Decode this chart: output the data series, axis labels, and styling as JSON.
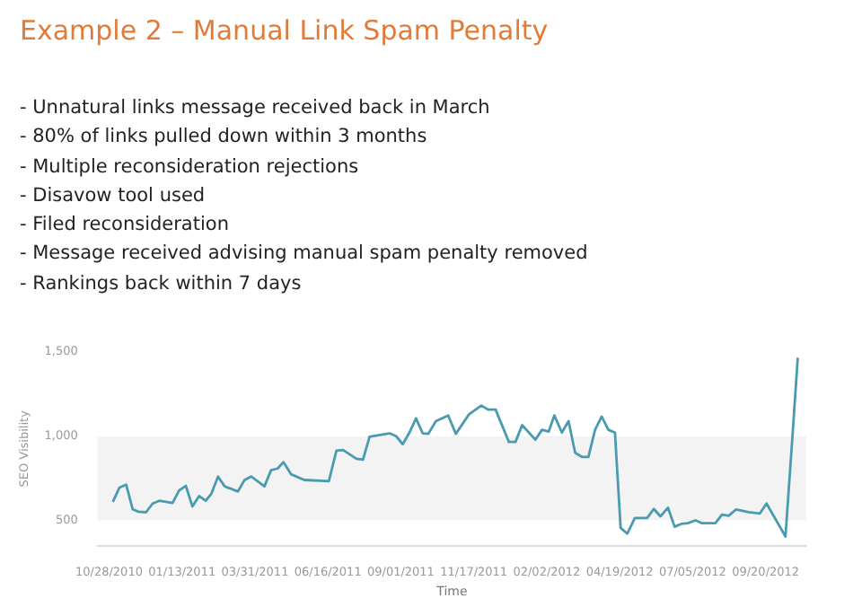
{
  "chart_data": {
    "type": "line",
    "title": "Example 2 – Manual Link Spam Penalty",
    "annotations": [
      "- Unnatural links message received back in March",
      "- 80% of links pulled down within 3 months",
      "- Multiple reconsideration rejections",
      "- Disavow tool used",
      "- Filed reconsideration",
      "- Message received advising manual spam penalty removed",
      "- Rankings back within 7 days"
    ],
    "xlabel": "Time",
    "ylabel": "SEO Visibility",
    "x": [
      "2010-11-01",
      "2010-11-08",
      "2010-11-15",
      "2010-11-22",
      "2010-11-28",
      "2010-12-06",
      "2010-12-13",
      "2010-12-20",
      "2010-12-27",
      "2011-01-03",
      "2011-01-10",
      "2011-01-17",
      "2011-01-24",
      "2011-01-31",
      "2011-02-07",
      "2011-02-13",
      "2011-02-20",
      "2011-02-27",
      "2011-03-13",
      "2011-03-20",
      "2011-03-27",
      "2011-04-10",
      "2011-04-17",
      "2011-04-24",
      "2011-04-30",
      "2011-05-08",
      "2011-05-22",
      "2011-06-17",
      "2011-06-25",
      "2011-07-02",
      "2011-07-16",
      "2011-07-23",
      "2011-07-30",
      "2011-08-20",
      "2011-08-27",
      "2011-09-03",
      "2011-09-10",
      "2011-09-17",
      "2011-09-24",
      "2011-09-30",
      "2011-10-08",
      "2011-10-21",
      "2011-10-29",
      "2011-11-12",
      "2011-11-25",
      "2011-12-02",
      "2011-12-10",
      "2011-12-24",
      "2011-12-31",
      "2012-01-07",
      "2012-01-21",
      "2012-01-28",
      "2012-02-04",
      "2012-02-10",
      "2012-02-18",
      "2012-02-25",
      "2012-03-03",
      "2012-03-10",
      "2012-03-17",
      "2012-03-24",
      "2012-03-31",
      "2012-04-07",
      "2012-04-14",
      "2012-04-20",
      "2012-04-27",
      "2012-05-05",
      "2012-05-18",
      "2012-05-25",
      "2012-06-01",
      "2012-06-09",
      "2012-06-16",
      "2012-06-23",
      "2012-06-30",
      "2012-07-08",
      "2012-07-15",
      "2012-07-29",
      "2012-08-05",
      "2012-08-12",
      "2012-08-20",
      "2012-09-02",
      "2012-09-14",
      "2012-09-21",
      "2012-10-11",
      "2012-10-18",
      "2012-10-24"
    ],
    "series": [
      {
        "color": "#4a9bb0",
        "values": [
          610,
          695,
          712,
          565,
          551,
          548,
          600,
          616,
          610,
          603,
          678,
          705,
          582,
          644,
          616,
          658,
          760,
          702,
          671,
          740,
          760,
          702,
          798,
          808,
          846,
          774,
          740,
          733,
          914,
          918,
          866,
          860,
          997,
          1017,
          1000,
          952,
          1021,
          1106,
          1017,
          1014,
          1089,
          1123,
          1014,
          1130,
          1182,
          1158,
          1158,
          966,
          966,
          1065,
          979,
          1038,
          1027,
          1123,
          1021,
          1089,
          901,
          877,
          877,
          1038,
          1116,
          1038,
          1021,
          455,
          421,
          514,
          514,
          568,
          524,
          575,
          462,
          479,
          483,
          500,
          483,
          483,
          534,
          527,
          565,
          548,
          541,
          600,
          404,
          969,
          1466
        ]
      }
    ],
    "xlim": [
      "2010-10-16",
      "2012-11-02"
    ],
    "xticks": [
      {
        "value": "2010-10-28",
        "label": "10/28/2010"
      },
      {
        "value": "2011-01-13",
        "label": "01/13/2011"
      },
      {
        "value": "2011-03-31",
        "label": "03/31/2011"
      },
      {
        "value": "2011-06-16",
        "label": "06/16/2011"
      },
      {
        "value": "2011-09-01",
        "label": "09/01/2011"
      },
      {
        "value": "2011-11-17",
        "label": "11/17/2011"
      },
      {
        "value": "2012-02-02",
        "label": "02/02/2012"
      },
      {
        "value": "2012-04-19",
        "label": "04/19/2012"
      },
      {
        "value": "2012-07-05",
        "label": "07/05/2012"
      },
      {
        "value": "2012-09-20",
        "label": "09/20/2012"
      }
    ],
    "ylim": [
      350,
      1500
    ],
    "yticks": [
      {
        "value": 1500,
        "label": "1,500"
      },
      {
        "value": 1000,
        "label": "1,000"
      },
      500
    ],
    "bands": [
      {
        "axis": "y",
        "from": 500,
        "to": 1000,
        "color": "#f3f3f3"
      }
    ],
    "marker": "none",
    "line_style": "solid",
    "legend": false,
    "grid": false
  }
}
